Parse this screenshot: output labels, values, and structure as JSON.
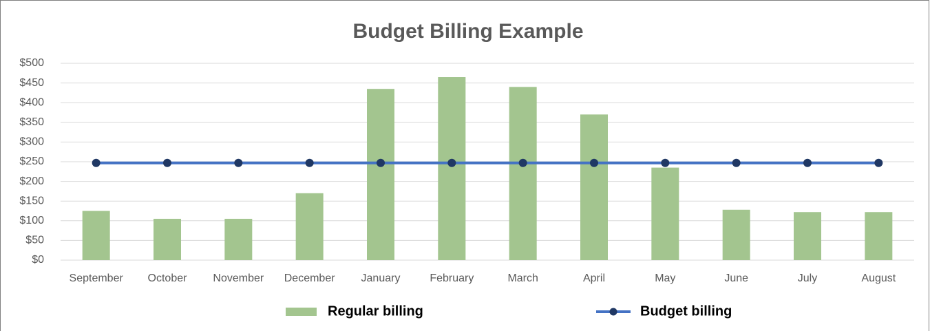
{
  "chart_data": {
    "type": "bar",
    "title": "Budget Billing Example",
    "categories": [
      "September",
      "October",
      "November",
      "December",
      "January",
      "February",
      "March",
      "April",
      "May",
      "June",
      "July",
      "August"
    ],
    "series": [
      {
        "name": "Regular billing",
        "type": "bar",
        "color": "#a3c58f",
        "values": [
          125,
          105,
          105,
          170,
          435,
          465,
          440,
          370,
          235,
          128,
          122,
          122
        ]
      },
      {
        "name": "Budget billing",
        "type": "line",
        "color": "#4472c4",
        "marker_color": "#203864",
        "values": [
          247,
          247,
          247,
          247,
          247,
          247,
          247,
          247,
          247,
          247,
          247,
          247
        ]
      }
    ],
    "ylim": [
      0,
      500
    ],
    "yticks": [
      {
        "value": 0,
        "label": "$0"
      },
      {
        "value": 50,
        "label": "$50"
      },
      {
        "value": 100,
        "label": "$100"
      },
      {
        "value": 150,
        "label": "$150"
      },
      {
        "value": 200,
        "label": "$200"
      },
      {
        "value": 250,
        "label": "$250"
      },
      {
        "value": 300,
        "label": "$300"
      },
      {
        "value": 350,
        "label": "$350"
      },
      {
        "value": 400,
        "label": "$400"
      },
      {
        "value": 450,
        "label": "$450"
      },
      {
        "value": 500,
        "label": "$500"
      }
    ],
    "grid": true,
    "legend": "bottom"
  }
}
